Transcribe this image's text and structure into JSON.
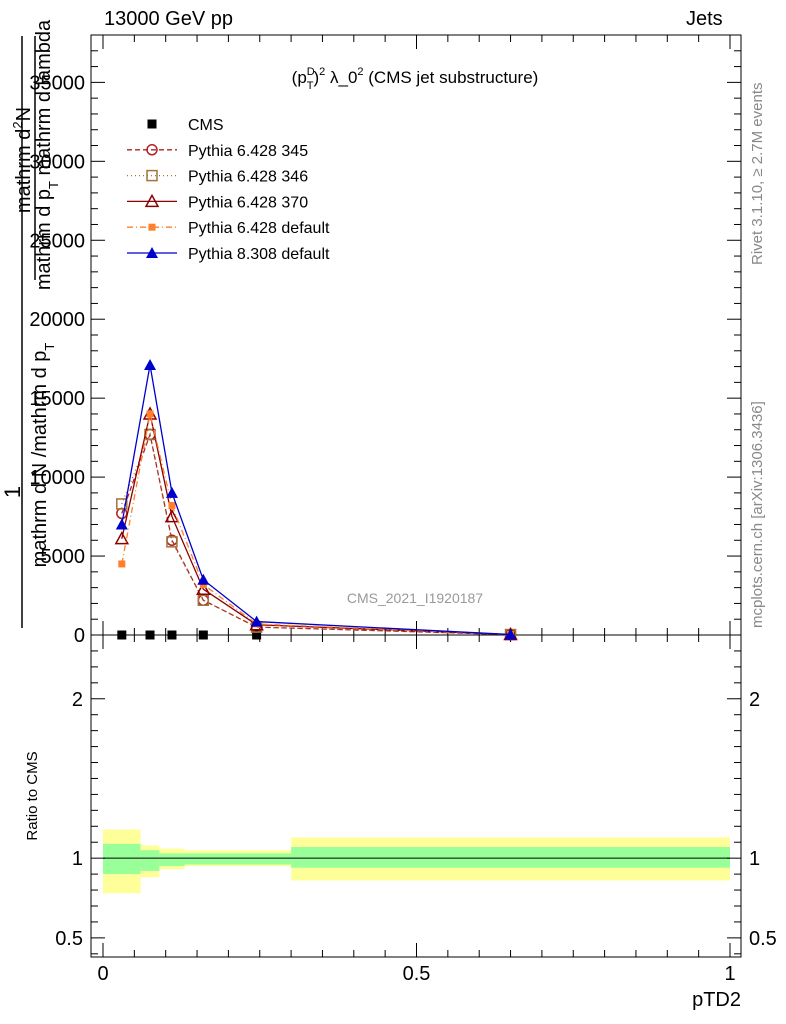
{
  "header": {
    "left": "13000 GeV pp",
    "right": "Jets"
  },
  "side_labels": {
    "rivet": "Rivet 3.1.10, ≥ 2.7M events",
    "mcplots": "mcplots.cern.ch [arXiv:1306.3436]"
  },
  "watermark": "CMS_2021_I1920187",
  "plot_title": {
    "prefix": "(p",
    "sup_D": "D",
    "sub_T": "T",
    "sup_2": "2",
    "middle": " λ_0",
    "sup_end": "2",
    "suffix": " (CMS jet substructure)"
  },
  "ylabel_main": {
    "one": "1",
    "frac_top_a": "mathrm d",
    "frac_top_sup": "2",
    "frac_top_b": "N",
    "frac_bottom_a": "mathrm d p",
    "frac_bottom_sub": "T",
    "frac_bottom_b": " mathrm d lambda",
    "outer_bottom": "mathrm d N /mathrm d p",
    "outer_bottom_sub": "T"
  },
  "ylabel_ratio": "Ratio to CMS",
  "xlabel": "pTD2",
  "legend": [
    {
      "name": "CMS",
      "color": "#000000",
      "marker": "square-filled",
      "line": "none"
    },
    {
      "name": "Pythia 6.428 345",
      "color": "#b22222",
      "marker": "circle-open",
      "line": "dashed"
    },
    {
      "name": "Pythia 6.428 346",
      "color": "#a0743b",
      "marker": "square-open",
      "line": "dotted"
    },
    {
      "name": "Pythia 6.428 370",
      "color": "#8b0000",
      "marker": "triangle-open",
      "line": "solid"
    },
    {
      "name": "Pythia 6.428 default",
      "color": "#ff7f2a",
      "marker": "square-filled-small",
      "line": "dashdot"
    },
    {
      "name": "Pythia 8.308 default",
      "color": "#0000cc",
      "marker": "triangle-filled",
      "line": "solid"
    }
  ],
  "chart_data": [
    {
      "type": "line",
      "title": "(p_T^D)^2 λ_0^2 (CMS jet substructure)",
      "xlim": [
        0,
        1
      ],
      "ylim": [
        0,
        38000
      ],
      "yticks": [
        0,
        5000,
        10000,
        15000,
        20000,
        25000,
        30000,
        35000
      ],
      "ytick_labels": [
        "0",
        "5000",
        "10000",
        "15000",
        "20000",
        "25000",
        "30000",
        "35000"
      ],
      "series": [
        {
          "name": "CMS",
          "x": [
            0.03,
            0.075,
            0.11,
            0.16,
            0.245,
            0.65
          ],
          "y": [
            0,
            0,
            0,
            0,
            0,
            0
          ]
        },
        {
          "name": "Pythia 6.428 345",
          "x": [
            0.03,
            0.075,
            0.11,
            0.16,
            0.245,
            0.65
          ],
          "y": [
            7700,
            12700,
            6000,
            2200,
            500,
            30
          ]
        },
        {
          "name": "Pythia 6.428 346",
          "x": [
            0.03,
            0.075,
            0.11,
            0.16,
            0.245,
            0.65
          ],
          "y": [
            8300,
            12700,
            5900,
            2200,
            500,
            30
          ]
        },
        {
          "name": "Pythia 6.428 370",
          "x": [
            0.03,
            0.075,
            0.11,
            0.16,
            0.245,
            0.65
          ],
          "y": [
            6100,
            14000,
            7500,
            2900,
            650,
            30
          ]
        },
        {
          "name": "Pythia 6.428 default",
          "x": [
            0.03,
            0.075,
            0.11,
            0.16,
            0.245,
            0.65
          ],
          "y": [
            4500,
            14000,
            8200,
            3200,
            700,
            30
          ]
        },
        {
          "name": "Pythia 8.308 default",
          "x": [
            0.03,
            0.075,
            0.11,
            0.16,
            0.245,
            0.65
          ],
          "y": [
            7000,
            17100,
            9000,
            3500,
            850,
            30
          ]
        }
      ]
    },
    {
      "type": "area",
      "ylabel": "Ratio to CMS",
      "xlabel": "pTD2",
      "xlim": [
        0,
        1
      ],
      "ylim": [
        0.38,
        2.4
      ],
      "xticks": [
        0,
        0.5,
        1
      ],
      "xtick_labels": [
        "0",
        "0.5",
        "1"
      ],
      "yticks": [
        0.5,
        1,
        2
      ],
      "ytick_labels": [
        "0.5",
        "1",
        "2"
      ],
      "reference": 1,
      "bins": [
        {
          "x0": 0.0,
          "x1": 0.06,
          "stat": [
            0.9,
            1.09
          ],
          "total": [
            0.78,
            1.18
          ]
        },
        {
          "x0": 0.06,
          "x1": 0.09,
          "stat": [
            0.92,
            1.05
          ],
          "total": [
            0.88,
            1.08
          ]
        },
        {
          "x0": 0.09,
          "x1": 0.13,
          "stat": [
            0.95,
            1.03
          ],
          "total": [
            0.93,
            1.06
          ]
        },
        {
          "x0": 0.13,
          "x1": 0.3,
          "stat": [
            0.96,
            1.03
          ],
          "total": [
            0.95,
            1.05
          ]
        },
        {
          "x0": 0.3,
          "x1": 1.0,
          "stat": [
            0.94,
            1.07
          ],
          "total": [
            0.86,
            1.13
          ]
        }
      ]
    }
  ]
}
